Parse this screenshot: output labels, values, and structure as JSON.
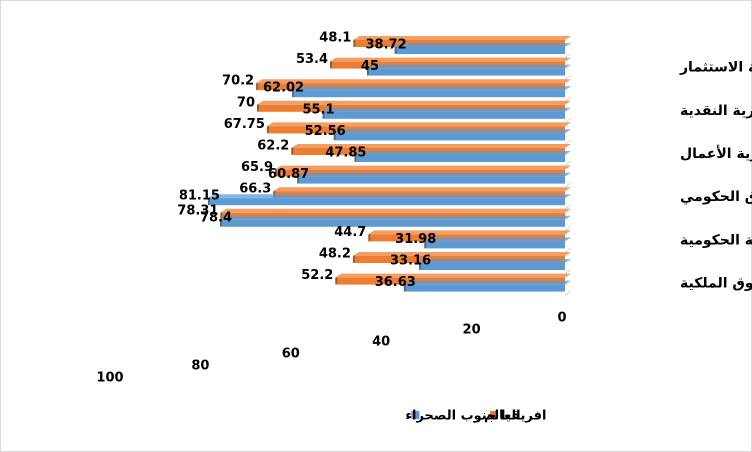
{
  "chart_data": {
    "type": "bar",
    "orientation": "horizontal",
    "x_reversed": true,
    "categories": [
      null,
      "حرية الاستثمار",
      null,
      "الحرية النقدية",
      null,
      "حرية الأعمال",
      null,
      "الإنفاق الحكومي",
      null,
      "النزاهة الحكومية",
      null,
      "حقوق الملكية"
    ],
    "series": [
      {
        "name": "العالم",
        "color": "#ed7d31",
        "values": [
          48.1,
          53.4,
          70.2,
          70,
          67.75,
          62.2,
          65.9,
          66.3,
          78.31,
          44.7,
          48.2,
          52.2
        ]
      },
      {
        "name": "افريقيا جنوب الصحراء",
        "color": "#5b9bd5",
        "values": [
          38.72,
          45,
          62.02,
          55.1,
          52.56,
          47.85,
          60.87,
          81.15,
          78.4,
          31.98,
          33.16,
          36.63
        ]
      }
    ],
    "xlim": [
      0,
      100
    ],
    "xticks": [
      0,
      20,
      40,
      60,
      80,
      100
    ],
    "legend": "bottom"
  }
}
